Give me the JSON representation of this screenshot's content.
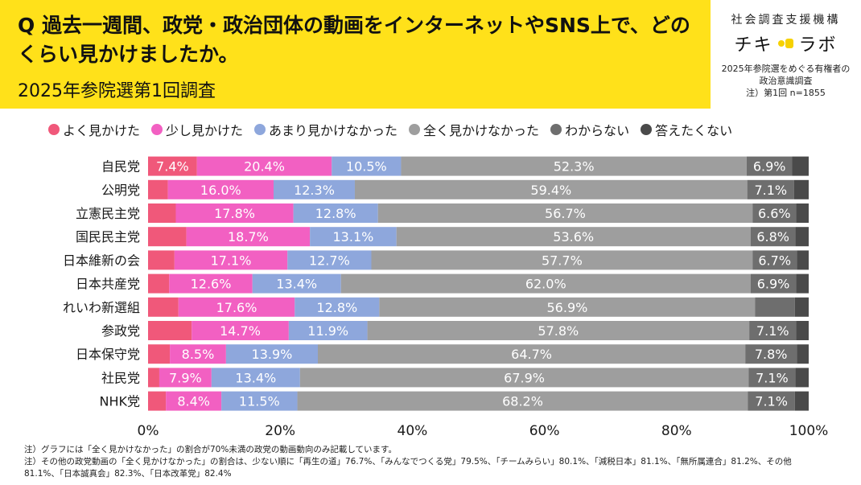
{
  "header": {
    "title": "Q 過去一週間、政党・政治団体の動画をインターネットやSNS上で、どのくらい見かけましたか。",
    "subtitle": "2025年参院選第1回調査"
  },
  "org": {
    "name": "社会調査支援機構",
    "logo_left": "チキ",
    "logo_right": "ラボ",
    "desc_line1": "2025年参院選をめぐる有権者の",
    "desc_line2": "政治意識調査",
    "desc_line3": "注）第1回 n=1855"
  },
  "notes": {
    "line1": "注）グラフには「全く見かけなかった」の割合が70%未満の政党の動画動向のみ記載しています。",
    "line2": "注）その他の政党動画の「全く見かけなかった」の割合は、少ない順に「再生の道」76.7%、「みんなでつくる党」79.5%、「チームみらい」80.1%、「減税日本」81.1%、「無所属連合」81.2%、その他",
    "line3": "81.1%、「日本誠真会」82.3%、「日本改革党」82.4%"
  },
  "chart_data": {
    "type": "bar",
    "orientation": "horizontal",
    "stacked": true,
    "categories": [
      "自民党",
      "公明党",
      "立憲民主党",
      "国民民主党",
      "日本維新の会",
      "日本共産党",
      "れいわ新選組",
      "参政党",
      "日本保守党",
      "社民党",
      "NHK党"
    ],
    "series": [
      {
        "name": "よく見かけた",
        "color": "#f0587a",
        "values": [
          7.4,
          3.0,
          4.2,
          5.8,
          4.0,
          3.2,
          4.6,
          6.6,
          3.3,
          1.7,
          2.7
        ],
        "labels": [
          "7.4%",
          "",
          "",
          "",
          "",
          "",
          "",
          "",
          "",
          "",
          ""
        ]
      },
      {
        "name": "少し見かけた",
        "color": "#f260c2",
        "values": [
          20.4,
          16.0,
          17.8,
          18.7,
          17.1,
          12.6,
          17.6,
          14.7,
          8.5,
          7.9,
          8.4
        ],
        "labels": [
          "20.4%",
          "16.0%",
          "17.8%",
          "18.7%",
          "17.1%",
          "12.6%",
          "17.6%",
          "14.7%",
          "8.5%",
          "7.9%",
          "8.4%"
        ]
      },
      {
        "name": "あまり見かけなかった",
        "color": "#8ea7dc",
        "values": [
          10.5,
          12.3,
          12.8,
          13.1,
          12.7,
          13.4,
          12.8,
          11.9,
          13.9,
          13.4,
          11.5
        ],
        "labels": [
          "10.5%",
          "12.3%",
          "12.8%",
          "13.1%",
          "12.7%",
          "13.4%",
          "12.8%",
          "11.9%",
          "13.9%",
          "13.4%",
          "11.5%"
        ]
      },
      {
        "name": "全く見かけなかった",
        "color": "#9e9e9e",
        "values": [
          52.3,
          59.4,
          56.7,
          53.6,
          57.7,
          62.0,
          56.9,
          57.8,
          64.7,
          67.9,
          68.2
        ],
        "labels": [
          "52.3%",
          "59.4%",
          "56.7%",
          "53.6%",
          "57.7%",
          "62.0%",
          "56.9%",
          "57.8%",
          "64.7%",
          "67.9%",
          "68.2%"
        ]
      },
      {
        "name": "わからない",
        "color": "#6e6e6e",
        "values": [
          6.9,
          7.1,
          6.6,
          6.8,
          6.7,
          6.9,
          6.0,
          7.1,
          7.8,
          7.1,
          7.1
        ],
        "labels": [
          "6.9%",
          "7.1%",
          "6.6%",
          "6.8%",
          "6.7%",
          "6.9%",
          "",
          "7.1%",
          "7.8%",
          "7.1%",
          "7.1%"
        ]
      },
      {
        "name": "答えたくない",
        "color": "#4a4a4a",
        "values": [
          2.5,
          2.2,
          1.9,
          2.0,
          1.8,
          1.9,
          2.1,
          1.9,
          1.8,
          2.0,
          2.1
        ],
        "labels": [
          "",
          "",
          "",
          "",
          "",
          "",
          "",
          "",
          "",
          "",
          ""
        ]
      }
    ],
    "x_ticks": [
      "0%",
      "20%",
      "40%",
      "60%",
      "80%",
      "100%"
    ],
    "xlim": [
      0,
      100
    ],
    "legend_position": "top",
    "grid": false
  }
}
